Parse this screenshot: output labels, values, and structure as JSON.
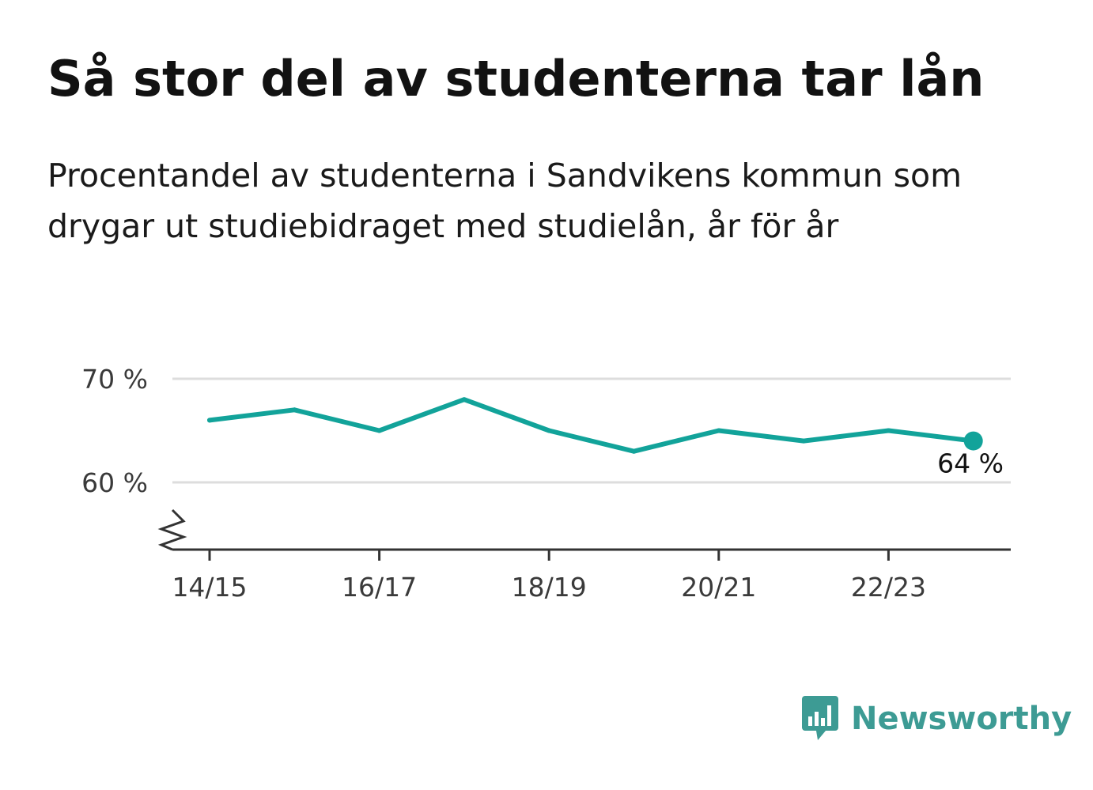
{
  "title": "Så stor del av studenterna tar lån",
  "subtitle": "Procentandel av studenterna i Sandvikens kommun som drygar ut studiebidraget med studielån, år för år",
  "brand": {
    "name": "Newsworthy",
    "icon": "newsworthy-logo-icon"
  },
  "colors": {
    "line": "#12a39a",
    "grid": "#dddddd",
    "axis": "#333333",
    "text": "#121212",
    "brand": "#3d9b94"
  },
  "chart_data": {
    "type": "line",
    "title": "Så stor del av studenterna tar lån",
    "xlabel": "",
    "ylabel": "",
    "x": [
      "14/15",
      "15/16",
      "16/17",
      "17/18",
      "18/19",
      "19/20",
      "20/21",
      "21/22",
      "22/23",
      "23/24"
    ],
    "series": [
      {
        "values": [
          66,
          67,
          65,
          68,
          65,
          63,
          65,
          64,
          65,
          64
        ]
      }
    ],
    "x_tick_labels": [
      "14/15",
      "16/17",
      "18/19",
      "20/21",
      "22/23"
    ],
    "y_ticks": [
      60,
      70
    ],
    "y_tick_labels": [
      "60 %",
      "70 %"
    ],
    "ylim": [
      53.5,
      70
    ],
    "axis_break": true,
    "grid": true,
    "end_label": "64 %"
  }
}
